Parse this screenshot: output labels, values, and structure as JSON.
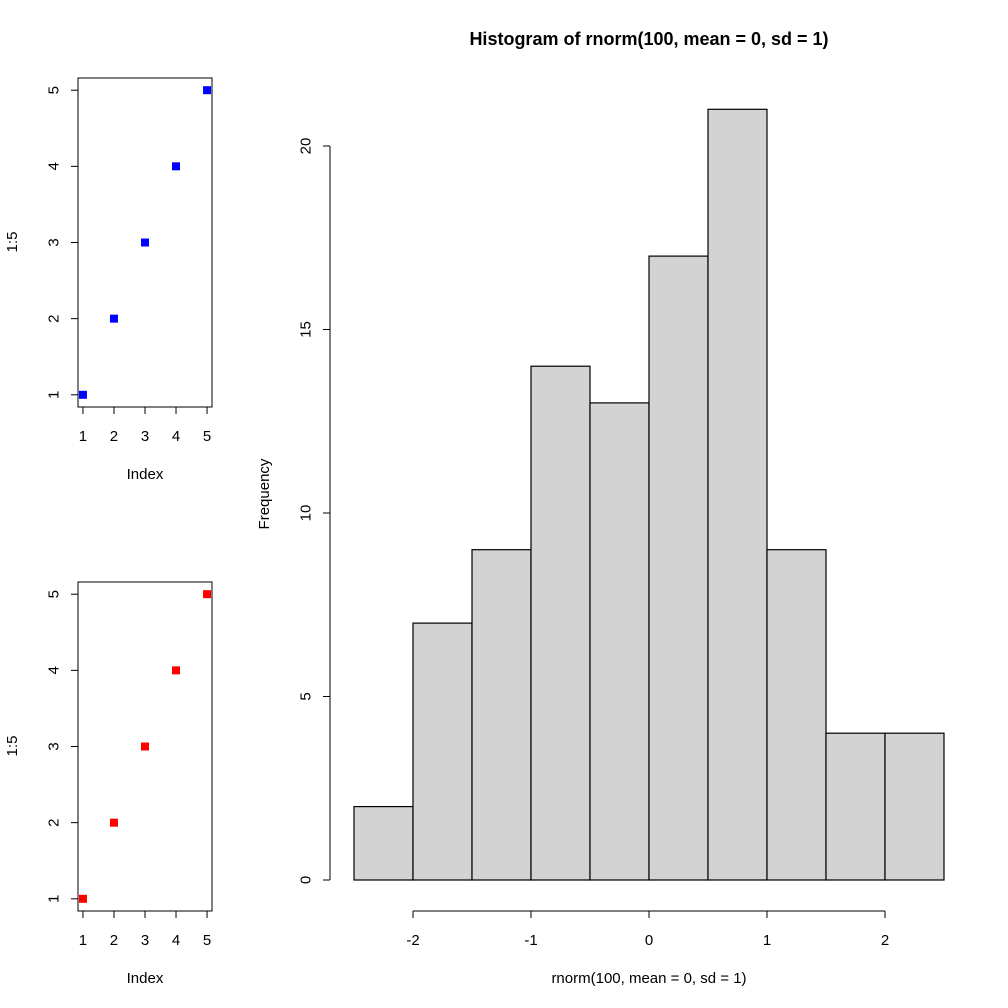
{
  "chart_data": [
    {
      "type": "scatter",
      "title": "",
      "xlabel": "Index",
      "ylabel": "1:5",
      "x": [
        1,
        2,
        3,
        4,
        5
      ],
      "y": [
        1,
        2,
        3,
        4,
        5
      ],
      "xlim": [
        0.84,
        5.16
      ],
      "ylim": [
        0.84,
        5.16
      ],
      "xticks": [
        "1",
        "2",
        "3",
        "4",
        "5"
      ],
      "yticks": [
        "1",
        "2",
        "3",
        "4",
        "5"
      ],
      "marker": "square",
      "color": "#0000ff",
      "grid": false
    },
    {
      "type": "scatter",
      "title": "",
      "xlabel": "Index",
      "ylabel": "1:5",
      "x": [
        1,
        2,
        3,
        4,
        5
      ],
      "y": [
        1,
        2,
        3,
        4,
        5
      ],
      "xlim": [
        0.84,
        5.16
      ],
      "ylim": [
        0.84,
        5.16
      ],
      "xticks": [
        "1",
        "2",
        "3",
        "4",
        "5"
      ],
      "yticks": [
        "1",
        "2",
        "3",
        "4",
        "5"
      ],
      "marker": "square",
      "color": "#ff0000",
      "grid": false
    },
    {
      "type": "bar",
      "subtype": "histogram",
      "title": "Histogram of rnorm(100, mean = 0, sd = 1)",
      "xlabel": "rnorm(100, mean = 0, sd = 1)",
      "ylabel": "Frequency",
      "bin_edges": [
        -2.5,
        -2.0,
        -1.5,
        -1.0,
        -0.5,
        0.0,
        0.5,
        1.0,
        1.5,
        2.0,
        2.5
      ],
      "values": [
        2,
        7,
        9,
        14,
        13,
        17,
        21,
        9,
        4,
        4
      ],
      "xlim": [
        -2.5,
        2.5
      ],
      "ylim": [
        0,
        21
      ],
      "xticks": [
        -2,
        -1,
        0,
        1,
        2
      ],
      "xtick_labels": [
        "-2",
        "-1",
        "0",
        "1",
        "2"
      ],
      "yticks": [
        0,
        5,
        10,
        15,
        20
      ],
      "ytick_labels": [
        "0",
        "5",
        "10",
        "15",
        "20"
      ],
      "bar_color": "#d3d3d3",
      "edge_color": "#000000",
      "grid": false
    }
  ]
}
